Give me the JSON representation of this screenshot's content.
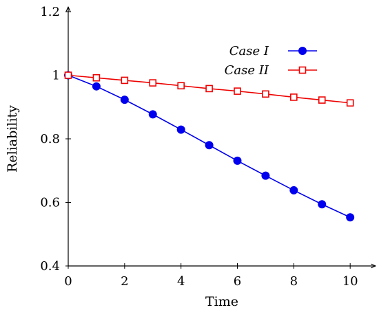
{
  "chart_data": {
    "type": "line",
    "xlabel": "Time",
    "ylabel": "Reliability",
    "xlim": [
      0,
      10.9
    ],
    "ylim": [
      0.4,
      1.2
    ],
    "x_ticks": [
      0,
      2,
      4,
      6,
      8,
      10
    ],
    "y_ticks": [
      0.4,
      0.6,
      0.8,
      1.0,
      1.2
    ],
    "x_tick_labels": [
      "0",
      "2",
      "4",
      "6",
      "8",
      "10"
    ],
    "y_tick_labels": [
      "0.4",
      "0.6",
      "0.8",
      "1",
      "1.2"
    ],
    "grid": false,
    "legend_position": "top-right",
    "x": [
      0,
      1,
      2,
      3,
      4,
      5,
      6,
      7,
      8,
      9,
      10
    ],
    "series": [
      {
        "name": "Case I",
        "color": "#0000ee",
        "marker": "filled-circle",
        "values": [
          1.0,
          0.965,
          0.923,
          0.877,
          0.829,
          0.78,
          0.731,
          0.684,
          0.638,
          0.594,
          0.553
        ]
      },
      {
        "name": "Case II",
        "color": "#ee0000",
        "marker": "open-square",
        "values": [
          1.0,
          0.992,
          0.984,
          0.976,
          0.967,
          0.958,
          0.95,
          0.941,
          0.931,
          0.922,
          0.913
        ]
      }
    ]
  }
}
